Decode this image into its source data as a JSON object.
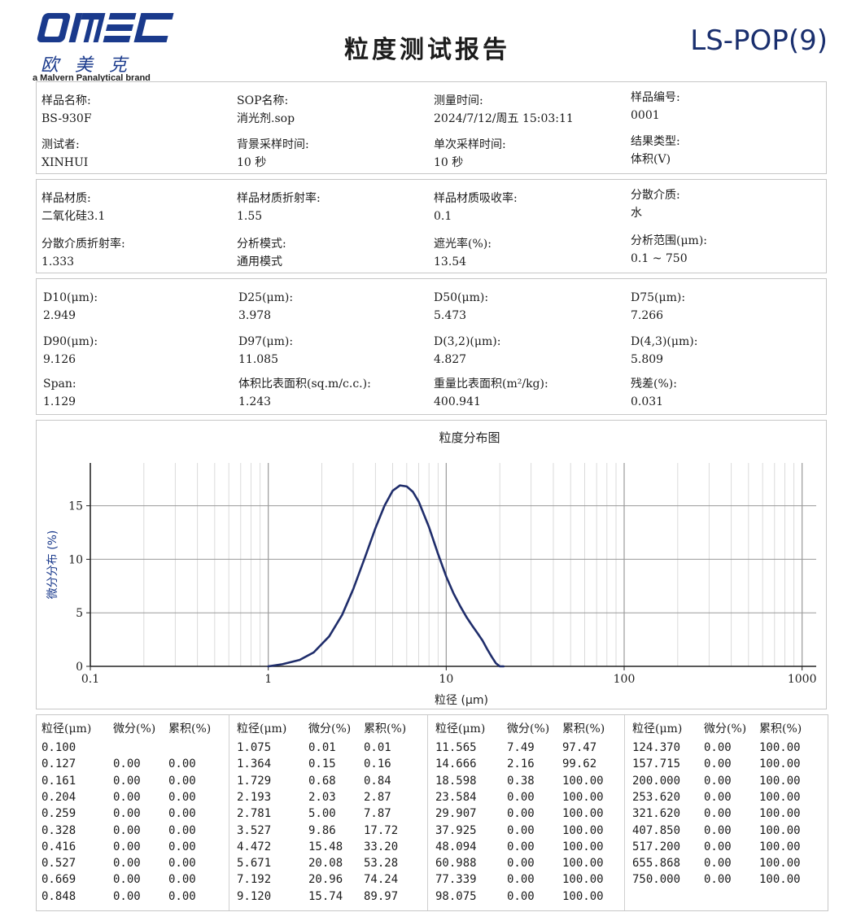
{
  "header": {
    "logo_text": "OMEC",
    "logo_cn": "欧美克",
    "brand_line": "a Malvern Panalytical brand",
    "title": "粒度测试报告",
    "doc_code": "LS-POP(9)"
  },
  "info": [
    [
      {
        "label": "样品名称:",
        "value": "BS-930F"
      },
      {
        "label": "SOP名称:",
        "value": "消光剂.sop"
      },
      {
        "label": "测量时间:",
        "value": "2024/7/12/周五 15:03:11"
      },
      {
        "label": "样品编号:",
        "value": "0001"
      }
    ],
    [
      {
        "label": "测试者:",
        "value": "XINHUI"
      },
      {
        "label": "背景采样时间:",
        "value": "10 秒"
      },
      {
        "label": "单次采样时间:",
        "value": "10 秒"
      },
      {
        "label": "结果类型:",
        "value": "体积(V)"
      }
    ]
  ],
  "material": [
    [
      {
        "label": "样品材质:",
        "value": "二氧化硅3.1"
      },
      {
        "label": "样品材质折射率:",
        "value": "1.55"
      },
      {
        "label": "样品材质吸收率:",
        "value": "0.1"
      },
      {
        "label": "分散介质:",
        "value": "水"
      }
    ],
    [
      {
        "label": "分散介质折射率:",
        "value": "1.333"
      },
      {
        "label": "分析模式:",
        "value": "通用模式"
      },
      {
        "label": "遮光率(%):",
        "value": "13.54"
      },
      {
        "label": "分析范围(μm):",
        "value": "0.1 ~ 750"
      }
    ]
  ],
  "results": [
    [
      {
        "label": "D10(μm):",
        "value": "2.949"
      },
      {
        "label": "D25(μm):",
        "value": "3.978"
      },
      {
        "label": "D50(μm):",
        "value": "5.473"
      },
      {
        "label": "D75(μm):",
        "value": "7.266"
      }
    ],
    [
      {
        "label": "D90(μm):",
        "value": "9.126"
      },
      {
        "label": "D97(μm):",
        "value": "11.085"
      },
      {
        "label": "D(3,2)(μm):",
        "value": "4.827"
      },
      {
        "label": "D(4,3)(μm):",
        "value": "5.809"
      }
    ],
    [
      {
        "label": "Span:",
        "value": "1.129"
      },
      {
        "label": "体积比表面积(sq.m/c.c.):",
        "value": "1.243"
      },
      {
        "label": "重量比表面积(m²/kg):",
        "value": "400.941"
      },
      {
        "label": "残差(%):",
        "value": "0.031"
      }
    ]
  ],
  "chart_data": {
    "type": "line",
    "title": "粒度分布图",
    "xlabel": "粒径 (μm)",
    "ylabel": "微分分布 (%)",
    "x_scale": "log",
    "xlim": [
      0.1,
      1200
    ],
    "ylim": [
      0,
      19
    ],
    "x_ticks": [
      "0.1",
      "1",
      "10",
      "100",
      "1000"
    ],
    "y_ticks": [
      "0",
      "5",
      "10",
      "15"
    ],
    "grid": true,
    "color": "#1f2d6b",
    "x": [
      1.0,
      1.2,
      1.5,
      1.8,
      2.2,
      2.6,
      3.0,
      3.5,
      4.0,
      4.5,
      5.0,
      5.5,
      6.0,
      6.5,
      7.0,
      8.0,
      9.0,
      10.0,
      11.0,
      12.0,
      13.0,
      14.0,
      15.0,
      16.0,
      17.0,
      18.0,
      19.0,
      20.0,
      21.0
    ],
    "values": [
      0.0,
      0.2,
      0.6,
      1.3,
      2.8,
      4.8,
      7.2,
      10.2,
      12.9,
      15.0,
      16.4,
      16.9,
      16.8,
      16.3,
      15.4,
      13.0,
      10.5,
      8.4,
      6.8,
      5.6,
      4.6,
      3.8,
      3.1,
      2.4,
      1.6,
      0.9,
      0.3,
      0.0,
      0.0
    ]
  },
  "table": {
    "headers": [
      "粒径(μm)",
      "微分(%)",
      "累积(%)"
    ],
    "columns": [
      [
        [
          "0.100",
          "",
          ""
        ],
        [
          "0.127",
          "0.00",
          "0.00"
        ],
        [
          "0.161",
          "0.00",
          "0.00"
        ],
        [
          "0.204",
          "0.00",
          "0.00"
        ],
        [
          "0.259",
          "0.00",
          "0.00"
        ],
        [
          "0.328",
          "0.00",
          "0.00"
        ],
        [
          "0.416",
          "0.00",
          "0.00"
        ],
        [
          "0.527",
          "0.00",
          "0.00"
        ],
        [
          "0.669",
          "0.00",
          "0.00"
        ],
        [
          "0.848",
          "0.00",
          "0.00"
        ]
      ],
      [
        [
          "1.075",
          "0.01",
          "0.01"
        ],
        [
          "1.364",
          "0.15",
          "0.16"
        ],
        [
          "1.729",
          "0.68",
          "0.84"
        ],
        [
          "2.193",
          "2.03",
          "2.87"
        ],
        [
          "2.781",
          "5.00",
          "7.87"
        ],
        [
          "3.527",
          "9.86",
          "17.72"
        ],
        [
          "4.472",
          "15.48",
          "33.20"
        ],
        [
          "5.671",
          "20.08",
          "53.28"
        ],
        [
          "7.192",
          "20.96",
          "74.24"
        ],
        [
          "9.120",
          "15.74",
          "89.97"
        ]
      ],
      [
        [
          "11.565",
          "7.49",
          "97.47"
        ],
        [
          "14.666",
          "2.16",
          "99.62"
        ],
        [
          "18.598",
          "0.38",
          "100.00"
        ],
        [
          "23.584",
          "0.00",
          "100.00"
        ],
        [
          "29.907",
          "0.00",
          "100.00"
        ],
        [
          "37.925",
          "0.00",
          "100.00"
        ],
        [
          "48.094",
          "0.00",
          "100.00"
        ],
        [
          "60.988",
          "0.00",
          "100.00"
        ],
        [
          "77.339",
          "0.00",
          "100.00"
        ],
        [
          "98.075",
          "0.00",
          "100.00"
        ]
      ],
      [
        [
          "124.370",
          "0.00",
          "100.00"
        ],
        [
          "157.715",
          "0.00",
          "100.00"
        ],
        [
          "200.000",
          "0.00",
          "100.00"
        ],
        [
          "253.620",
          "0.00",
          "100.00"
        ],
        [
          "321.620",
          "0.00",
          "100.00"
        ],
        [
          "407.850",
          "0.00",
          "100.00"
        ],
        [
          "517.200",
          "0.00",
          "100.00"
        ],
        [
          "655.868",
          "0.00",
          "100.00"
        ],
        [
          "750.000",
          "0.00",
          "100.00"
        ]
      ]
    ]
  }
}
